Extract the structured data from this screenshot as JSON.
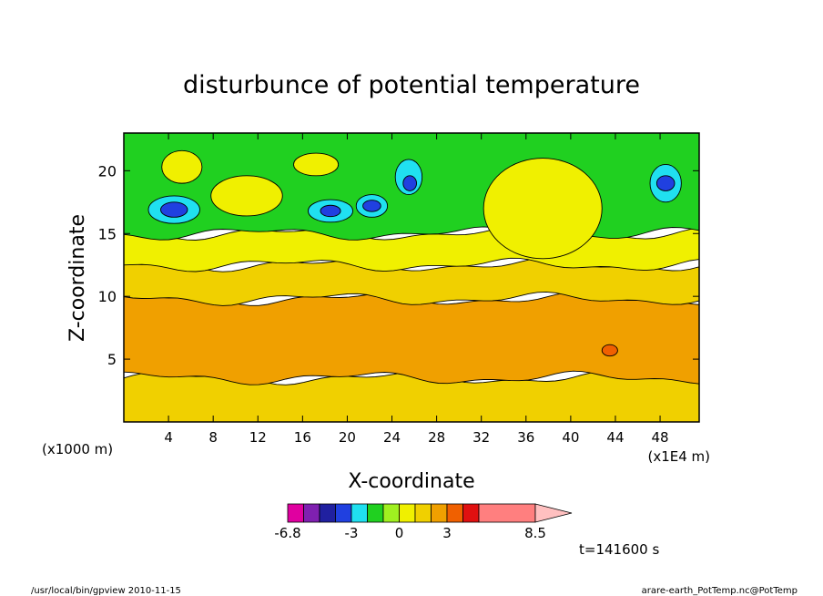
{
  "chart_data": {
    "type": "heatmap",
    "title": "disturbunce of potential temperature",
    "xlabel": "X-coordinate",
    "ylabel": "Z-coordinate",
    "x_unit": "(x1E4 m)",
    "y_unit": "(x1000 m)",
    "xlim": [
      0,
      51.5
    ],
    "ylim": [
      0,
      23
    ],
    "x_ticks": [
      4,
      8,
      12,
      16,
      20,
      24,
      28,
      32,
      36,
      40,
      44,
      48
    ],
    "y_ticks": [
      5,
      10,
      15,
      20
    ],
    "time_label": "t=141600 s",
    "colorbar": {
      "colors": [
        "#e000a0",
        "#7f20b0",
        "#2020a0",
        "#2040e0",
        "#20e0f0",
        "#20d020",
        "#a0f020",
        "#f0f000",
        "#f0d000",
        "#f0a000",
        "#f06000",
        "#e01010",
        "#ff7f7f",
        "#ffc0c0"
      ],
      "tick_labels": [
        "-6.8",
        "-3",
        "0",
        "3",
        "8.5"
      ]
    },
    "layers": [
      {
        "z_from": 0,
        "z_to": 3.5,
        "color": "#f0d000",
        "level": "1.5"
      },
      {
        "z_from": 3.5,
        "z_to": 9.8,
        "color": "#f0a000",
        "level": "2.5"
      },
      {
        "z_from": 9.8,
        "z_to": 12.5,
        "color": "#f0d000",
        "level": "1.5"
      },
      {
        "z_from": 12.5,
        "z_to": 15,
        "color": "#f0f000",
        "level": "0.8"
      },
      {
        "z_from": 15,
        "z_to": 23,
        "color": "#20d020",
        "level": "-0.5"
      }
    ],
    "features": [
      {
        "x": 4.5,
        "z": 16.9,
        "rx": 2.3,
        "rz": 1.1,
        "color": "#20e0f0"
      },
      {
        "x": 4.5,
        "z": 16.9,
        "rx": 1.2,
        "rz": 0.6,
        "color": "#2040e0"
      },
      {
        "x": 18.5,
        "z": 16.8,
        "rx": 2.0,
        "rz": 0.9,
        "color": "#20e0f0"
      },
      {
        "x": 18.5,
        "z": 16.8,
        "rx": 0.9,
        "rz": 0.45,
        "color": "#2040e0"
      },
      {
        "x": 22.2,
        "z": 17.2,
        "rx": 1.4,
        "rz": 0.9,
        "color": "#20e0f0"
      },
      {
        "x": 22.2,
        "z": 17.2,
        "rx": 0.8,
        "rz": 0.45,
        "color": "#2040e0"
      },
      {
        "x": 25.5,
        "z": 19.5,
        "rx": 1.2,
        "rz": 1.4,
        "color": "#20e0f0"
      },
      {
        "x": 25.6,
        "z": 19.0,
        "rx": 0.6,
        "rz": 0.6,
        "color": "#2040e0"
      },
      {
        "x": 48.5,
        "z": 19.0,
        "rx": 1.4,
        "rz": 1.5,
        "color": "#20e0f0"
      },
      {
        "x": 48.5,
        "z": 19.0,
        "rx": 0.8,
        "rz": 0.6,
        "color": "#2040e0"
      },
      {
        "x": 11.0,
        "z": 18.0,
        "rx": 3.2,
        "rz": 1.6,
        "color": "#f0f000"
      },
      {
        "x": 5.2,
        "z": 20.3,
        "rx": 1.8,
        "rz": 1.3,
        "color": "#f0f000"
      },
      {
        "x": 17.2,
        "z": 20.5,
        "rx": 2.0,
        "rz": 0.9,
        "color": "#f0f000"
      },
      {
        "x": 37.5,
        "z": 17.0,
        "rx": 5.3,
        "rz": 4.0,
        "color": "#f0f000"
      },
      {
        "x": 43.5,
        "z": 5.7,
        "rx": 0.7,
        "rz": 0.45,
        "color": "#f06000"
      }
    ]
  },
  "footer_left": "/usr/local/bin/gpview   2010-11-15",
  "footer_right": "arare-earth_PotTemp.nc@PotTemp"
}
